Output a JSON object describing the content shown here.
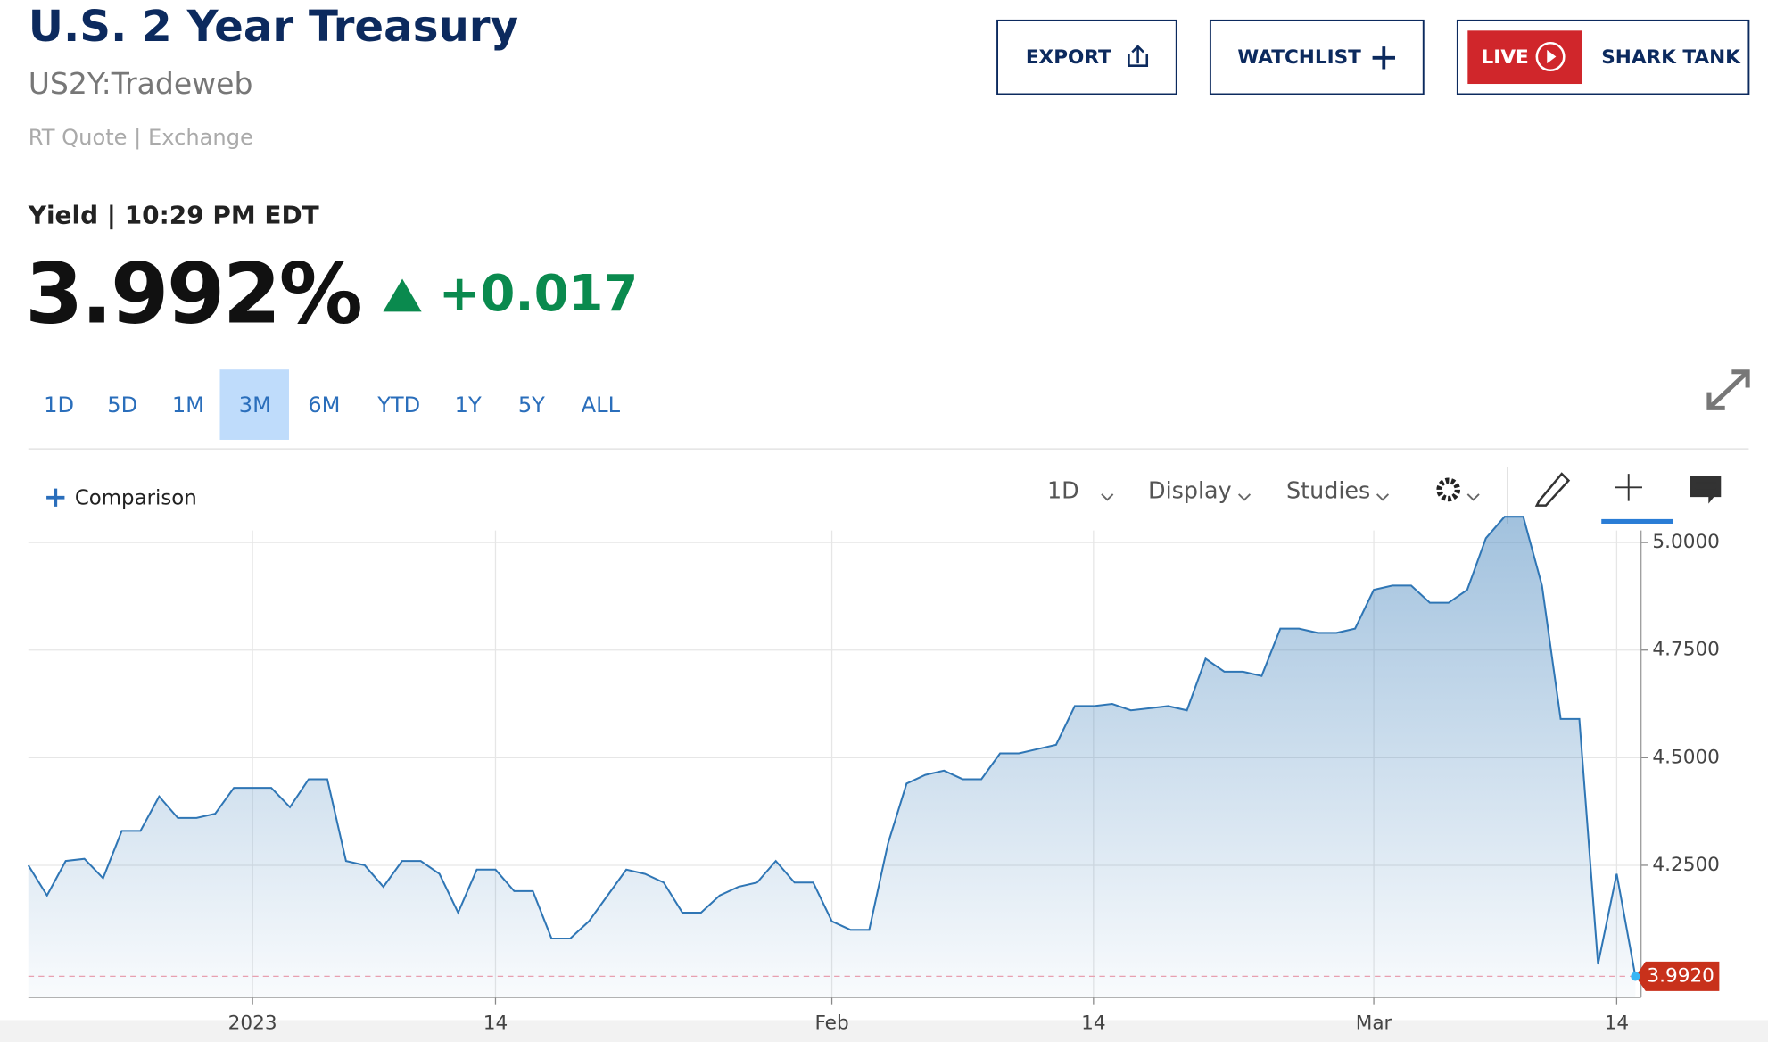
{
  "header": {
    "title": "U.S. 2 Year Treasury",
    "symbol": "US2Y:Tradeweb",
    "source": "RT Quote | Exchange",
    "quote_label": "Yield | 10:29 PM EDT",
    "price": "3.992%",
    "change": "+0.017"
  },
  "buttons": [
    "EXPORT",
    "WATCHLIST",
    "LIVE",
    "SHARK TANK"
  ],
  "ranges": [
    "1D",
    "5D",
    "1M",
    "3M",
    "6M",
    "YTD",
    "1Y",
    "5Y",
    "ALL"
  ],
  "toolbar": {
    "comparison": "Comparison",
    "interval": "1D",
    "display": "Display",
    "studies": "Studies"
  },
  "chart_data": {
    "type": "area",
    "color": "#2f76b5",
    "categories": [
      null,
      null,
      null,
      null,
      null,
      null,
      null,
      null,
      null,
      null,
      null,
      null,
      "2023",
      null,
      null,
      null,
      null,
      null,
      null,
      null,
      null,
      null,
      null,
      null,
      null,
      "14",
      null,
      null,
      null,
      null,
      null,
      null,
      null,
      null,
      null,
      null,
      null,
      null,
      null,
      null,
      null,
      null,
      null,
      "Feb",
      null,
      null,
      null,
      null,
      null,
      null,
      null,
      null,
      null,
      null,
      null,
      null,
      null,
      "14",
      null,
      null,
      null,
      null,
      null,
      null,
      null,
      null,
      null,
      null,
      null,
      null,
      null,
      null,
      "Mar",
      null,
      null,
      null,
      null,
      null,
      null,
      null,
      null,
      null,
      null,
      null,
      null,
      "14",
      null
    ],
    "values": [
      4.25,
      4.18,
      4.26,
      4.265,
      4.22,
      4.33,
      4.33,
      4.41,
      4.36,
      4.36,
      4.37,
      4.43,
      4.43,
      4.43,
      4.385,
      4.45,
      4.45,
      4.26,
      4.25,
      4.2,
      4.26,
      4.26,
      4.23,
      4.14,
      4.24,
      4.24,
      4.19,
      4.19,
      4.08,
      4.08,
      4.12,
      4.18,
      4.24,
      4.23,
      4.21,
      4.14,
      4.14,
      4.18,
      4.2,
      4.21,
      4.26,
      4.21,
      4.21,
      4.12,
      4.1,
      4.1,
      4.3,
      4.44,
      4.46,
      4.47,
      4.45,
      4.45,
      4.51,
      4.51,
      4.52,
      4.53,
      4.62,
      4.62,
      4.625,
      4.61,
      4.615,
      4.62,
      4.61,
      4.73,
      4.7,
      4.7,
      4.69,
      4.8,
      4.8,
      4.79,
      4.79,
      4.8,
      4.89,
      4.9,
      4.9,
      4.86,
      4.86,
      4.89,
      5.01,
      5.06,
      5.06,
      4.9,
      4.59,
      4.59,
      4.02,
      4.23,
      3.992
    ],
    "ylim": [
      3.943,
      5.028
    ],
    "yticks": [
      {
        "value": 4.25,
        "label": "4.2500"
      },
      {
        "value": 4.5,
        "label": "4.5000"
      },
      {
        "value": 4.75,
        "label": "4.7500"
      },
      {
        "value": 5,
        "label": "5.0000"
      }
    ],
    "price_tag": {
      "value": 3.992,
      "label": "3.9920"
    },
    "grid": true
  }
}
